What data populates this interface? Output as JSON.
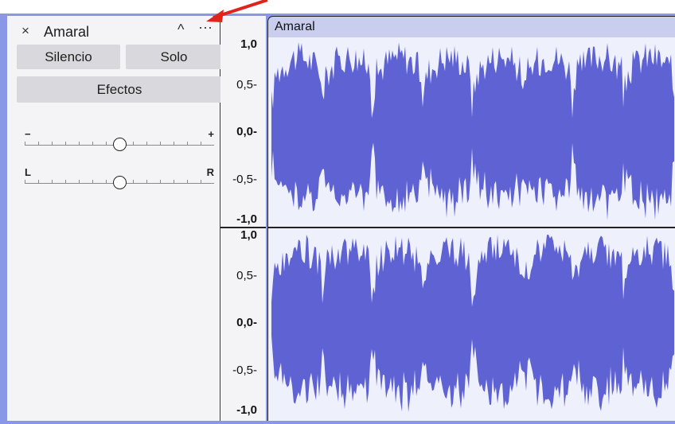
{
  "track": {
    "name": "Amaral",
    "close_icon": "×",
    "collapse_icon": "^",
    "menu_icon": "···",
    "buttons": {
      "mute": "Silencio",
      "solo": "Solo",
      "effects": "Efectos"
    },
    "gain_slider": {
      "min_label": "−",
      "max_label": "+",
      "value": 0.5
    },
    "pan_slider": {
      "left_label": "L",
      "right_label": "R",
      "value": 0.5
    }
  },
  "clip": {
    "title": "Amaral"
  },
  "ruler": {
    "channels": [
      {
        "labels": [
          {
            "text": "1,0",
            "value": 1.0,
            "bold": true
          },
          {
            "text": "0,5-",
            "value": 0.5,
            "bold": false
          },
          {
            "text": "0,0-",
            "value": 0.0,
            "bold": true
          },
          {
            "text": "-0,5-",
            "value": -0.5,
            "bold": false
          },
          {
            "text": "-1,0",
            "value": -1.0,
            "bold": true
          }
        ]
      },
      {
        "labels": [
          {
            "text": "1,0",
            "value": 1.0,
            "bold": true
          },
          {
            "text": "0,5-",
            "value": 0.5,
            "bold": false
          },
          {
            "text": "0,0-",
            "value": 0.0,
            "bold": true
          },
          {
            "text": "-0,5-",
            "value": -0.5,
            "bold": false
          },
          {
            "text": "-1,0",
            "value": -1.0,
            "bold": true
          }
        ]
      }
    ]
  },
  "colors": {
    "waveform": "#5f62d2",
    "annotation_arrow": "#e0231b",
    "frame": "#8a96e6"
  },
  "icons": [
    "close-icon",
    "collapse-icon",
    "menu-icon"
  ]
}
